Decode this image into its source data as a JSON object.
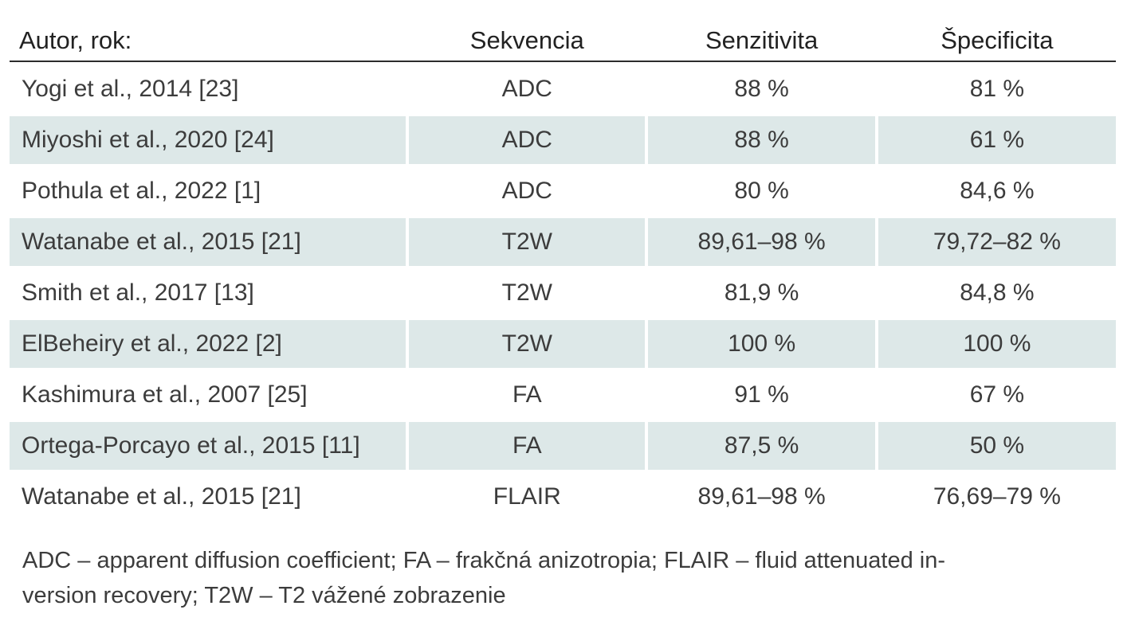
{
  "table": {
    "headers": [
      "Autor, rok:",
      "Sekvencia",
      "Senzitivita",
      "Špecificita"
    ],
    "rows": [
      {
        "author": "Yogi et al., 2014 [23]",
        "sequence": "ADC",
        "sensitivity": "88 %",
        "specificity": "81 %",
        "shaded": false
      },
      {
        "author": "Miyoshi et al., 2020 [24]",
        "sequence": "ADC",
        "sensitivity": "88 %",
        "specificity": "61 %",
        "shaded": true
      },
      {
        "author": "Pothula et al., 2022 [1]",
        "sequence": "ADC",
        "sensitivity": "80 %",
        "specificity": "84,6 %",
        "shaded": false
      },
      {
        "author": "Watanabe et al., 2015 [21]",
        "sequence": "T2W",
        "sensitivity": "89,61–98 %",
        "specificity": "79,72–82 %",
        "shaded": true
      },
      {
        "author": "Smith et al., 2017 [13]",
        "sequence": "T2W",
        "sensitivity": "81,9 %",
        "specificity": "84,8 %",
        "shaded": false
      },
      {
        "author": "ElBeheiry et al., 2022 [2]",
        "sequence": "T2W",
        "sensitivity": "100 %",
        "specificity": "100 %",
        "shaded": true
      },
      {
        "author": "Kashimura et al., 2007 [25]",
        "sequence": "FA",
        "sensitivity": "91 %",
        "specificity": "67 %",
        "shaded": false
      },
      {
        "author": "Ortega-Porcayo et al., 2015 [11]",
        "sequence": "FA",
        "sensitivity": "87,5 %",
        "specificity": "50 %",
        "shaded": true
      },
      {
        "author": "Watanabe et al., 2015 [21]",
        "sequence": "FLAIR",
        "sensitivity": "89,61–98 %",
        "specificity": "76,69–79 %",
        "shaded": false
      }
    ]
  },
  "footnote": {
    "line1": "ADC – apparent diffusion coefficient; FA – frakčná anizotropia; FLAIR – fluid attenuated in-",
    "line2": "version recovery; T2W –  T2 vážené zobrazenie"
  },
  "colors": {
    "shaded_row": "#dde8e8",
    "header_rule": "#2b2b2b",
    "text": "#3c3c3c"
  }
}
